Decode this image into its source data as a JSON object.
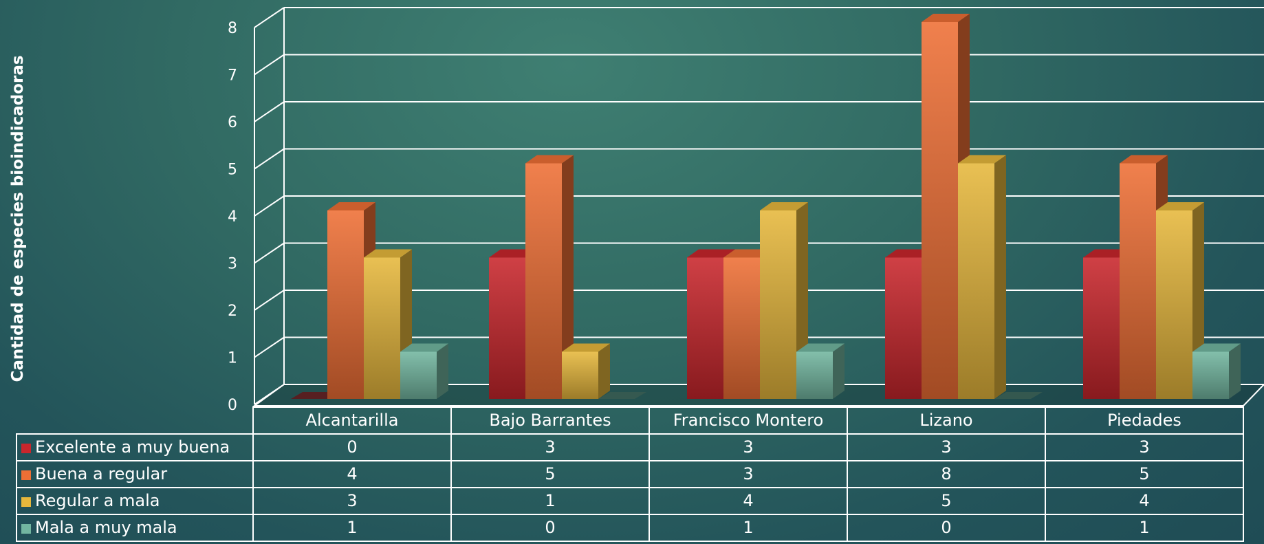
{
  "chart_data": {
    "type": "bar",
    "variant": "3d-clustered-column-with-data-table",
    "title": "",
    "xlabel": "",
    "ylabel": "Cantidad de especies bioindicadoras",
    "ylim": [
      0,
      8
    ],
    "yticks": [
      "0",
      "1",
      "2",
      "3",
      "4",
      "5",
      "6",
      "7",
      "8"
    ],
    "grid": true,
    "legend": "in-data-table",
    "categories": [
      "Alcantarilla",
      "Bajo Barrantes",
      "Francisco Montero",
      "Lizano",
      "Piedades"
    ],
    "series": [
      {
        "name": "Excelente a muy buena",
        "color": "#c8262c",
        "values": [
          0,
          3,
          3,
          3,
          3
        ]
      },
      {
        "name": "Buena a regular",
        "color": "#ee6f35",
        "values": [
          4,
          5,
          3,
          8,
          5
        ]
      },
      {
        "name": "Regular a mala",
        "color": "#e6b73c",
        "values": [
          3,
          1,
          4,
          5,
          4
        ]
      },
      {
        "name": "Mala a muy mala",
        "color": "#72b6a0",
        "values": [
          1,
          0,
          1,
          0,
          1
        ]
      }
    ]
  }
}
